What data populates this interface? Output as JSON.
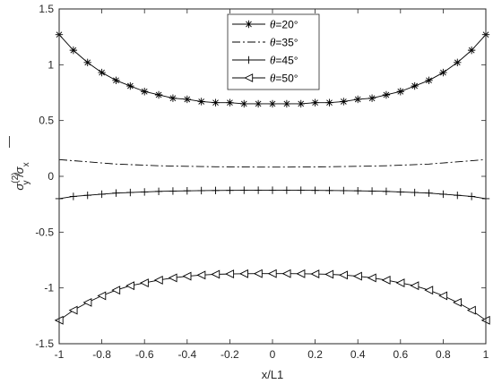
{
  "chart_data": {
    "type": "line",
    "title": "",
    "xlabel": "x/L1",
    "ylabel": {
      "base": "σ",
      "sub": "y",
      "sup": "(2)",
      "sep": " /",
      "base2": "σ",
      "sub2": "x",
      "bar": "—"
    },
    "xlim": [
      -1,
      1
    ],
    "ylim": [
      -1.5,
      1.5
    ],
    "xticks": [
      "-1",
      "-0.8",
      "-0.6",
      "-0.4",
      "-0.2",
      "0",
      "0.2",
      "0.4",
      "0.6",
      "0.8",
      "1"
    ],
    "yticks": [
      "-1.5",
      "-1",
      "-0.5",
      "0",
      "0.5",
      "1",
      "1.5"
    ],
    "grid": false,
    "legend_position": "top-center",
    "x": [
      -1.0,
      -0.9333,
      -0.8667,
      -0.8,
      -0.7333,
      -0.6667,
      -0.6,
      -0.5333,
      -0.4667,
      -0.4,
      -0.3333,
      -0.2667,
      -0.2,
      -0.1333,
      -0.0667,
      0.0,
      0.0667,
      0.1333,
      0.2,
      0.2667,
      0.3333,
      0.4,
      0.4667,
      0.5333,
      0.6,
      0.6667,
      0.7333,
      0.8,
      0.8667,
      0.9333,
      1.0
    ],
    "series": [
      {
        "name": "θ=20°",
        "legend_prefix": "θ",
        "legend_suffix": "=20°",
        "marker": "asterisk",
        "dash": "",
        "values": [
          1.27,
          1.13,
          1.02,
          0.93,
          0.86,
          0.81,
          0.76,
          0.73,
          0.7,
          0.69,
          0.67,
          0.66,
          0.66,
          0.65,
          0.65,
          0.65,
          0.65,
          0.65,
          0.66,
          0.66,
          0.67,
          0.69,
          0.7,
          0.73,
          0.76,
          0.81,
          0.86,
          0.93,
          1.02,
          1.13,
          1.27
        ]
      },
      {
        "name": "θ=35°",
        "legend_prefix": "θ",
        "legend_suffix": "=35°",
        "marker": "none",
        "dash": "9,3,2,3",
        "values": [
          0.15,
          0.14,
          0.13,
          0.12,
          0.11,
          0.105,
          0.1,
          0.095,
          0.092,
          0.09,
          0.088,
          0.086,
          0.085,
          0.084,
          0.083,
          0.083,
          0.083,
          0.084,
          0.085,
          0.086,
          0.088,
          0.09,
          0.092,
          0.095,
          0.1,
          0.105,
          0.11,
          0.12,
          0.13,
          0.14,
          0.15
        ]
      },
      {
        "name": "θ=45°",
        "legend_prefix": "θ",
        "legend_suffix": "=45°",
        "marker": "plus",
        "dash": "",
        "values": [
          -0.2,
          -0.18,
          -0.17,
          -0.16,
          -0.15,
          -0.145,
          -0.14,
          -0.135,
          -0.132,
          -0.13,
          -0.128,
          -0.127,
          -0.126,
          -0.125,
          -0.125,
          -0.125,
          -0.125,
          -0.125,
          -0.126,
          -0.127,
          -0.128,
          -0.13,
          -0.132,
          -0.135,
          -0.14,
          -0.145,
          -0.15,
          -0.16,
          -0.17,
          -0.18,
          -0.2
        ]
      },
      {
        "name": "θ=50°",
        "legend_prefix": "θ",
        "legend_suffix": "=50°",
        "marker": "triangle-left",
        "dash": "",
        "values": [
          -1.29,
          -1.2,
          -1.13,
          -1.07,
          -1.02,
          -0.98,
          -0.955,
          -0.93,
          -0.91,
          -0.895,
          -0.885,
          -0.878,
          -0.875,
          -0.873,
          -0.872,
          -0.872,
          -0.872,
          -0.873,
          -0.875,
          -0.878,
          -0.885,
          -0.895,
          -0.91,
          -0.93,
          -0.955,
          -0.98,
          -1.02,
          -1.07,
          -1.13,
          -1.2,
          -1.29
        ]
      }
    ]
  }
}
